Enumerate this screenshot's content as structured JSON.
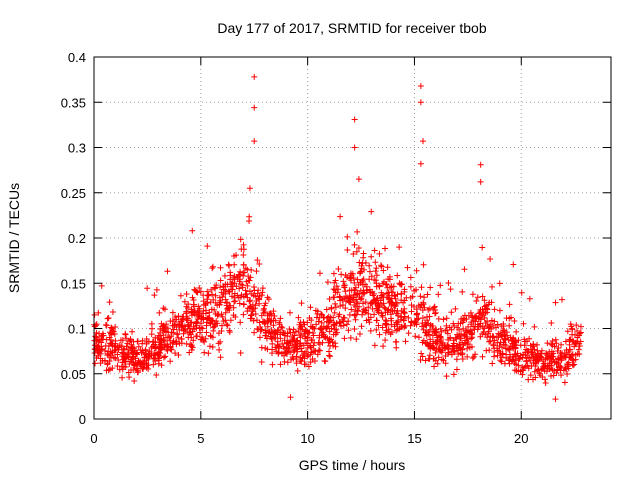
{
  "chart_data": {
    "type": "scatter",
    "title": "Day 177 of 2017, SRMTID for receiver tbob",
    "xlabel": "GPS time / hours",
    "ylabel": "SRMTID / TECUs",
    "xlim": [
      0,
      24.2
    ],
    "ylim": [
      0,
      0.4
    ],
    "x_ticks": [
      "0",
      "5",
      "10",
      "15",
      "20"
    ],
    "y_ticks": [
      "0",
      "0.05",
      "0.1",
      "0.15",
      "0.2",
      "0.25",
      "0.3",
      "0.35",
      "0.4"
    ],
    "x_tick_values": [
      0,
      5,
      10,
      15,
      20
    ],
    "y_tick_values": [
      0,
      0.05,
      0.1,
      0.15,
      0.2,
      0.25,
      0.3,
      0.35,
      0.4
    ],
    "grid": true,
    "marker": "+",
    "color": "#ff0000",
    "x_extent_hours": [
      0,
      22.8
    ],
    "density_note": "approx. 2000 points; values shown as a baseline trend plus representative outliers",
    "baseline": [
      {
        "x": 0.0,
        "y": 0.09
      },
      {
        "x": 1.0,
        "y": 0.075
      },
      {
        "x": 2.0,
        "y": 0.065
      },
      {
        "x": 3.0,
        "y": 0.08
      },
      {
        "x": 4.0,
        "y": 0.1
      },
      {
        "x": 5.0,
        "y": 0.11
      },
      {
        "x": 6.0,
        "y": 0.12
      },
      {
        "x": 7.0,
        "y": 0.15
      },
      {
        "x": 8.0,
        "y": 0.11
      },
      {
        "x": 9.0,
        "y": 0.08
      },
      {
        "x": 10.0,
        "y": 0.085
      },
      {
        "x": 11.0,
        "y": 0.1
      },
      {
        "x": 12.0,
        "y": 0.14
      },
      {
        "x": 13.0,
        "y": 0.13
      },
      {
        "x": 14.0,
        "y": 0.12
      },
      {
        "x": 15.0,
        "y": 0.12
      },
      {
        "x": 16.0,
        "y": 0.09
      },
      {
        "x": 17.0,
        "y": 0.08
      },
      {
        "x": 18.0,
        "y": 0.11
      },
      {
        "x": 19.0,
        "y": 0.09
      },
      {
        "x": 20.0,
        "y": 0.07
      },
      {
        "x": 21.0,
        "y": 0.065
      },
      {
        "x": 22.0,
        "y": 0.065
      },
      {
        "x": 22.8,
        "y": 0.09
      }
    ],
    "highlights": [
      {
        "x": 7.5,
        "y": 0.378
      },
      {
        "x": 7.5,
        "y": 0.344
      },
      {
        "x": 7.5,
        "y": 0.307
      },
      {
        "x": 7.3,
        "y": 0.255
      },
      {
        "x": 12.2,
        "y": 0.331
      },
      {
        "x": 12.2,
        "y": 0.3
      },
      {
        "x": 12.4,
        "y": 0.265
      },
      {
        "x": 15.3,
        "y": 0.368
      },
      {
        "x": 15.3,
        "y": 0.35
      },
      {
        "x": 15.4,
        "y": 0.307
      },
      {
        "x": 15.3,
        "y": 0.282
      },
      {
        "x": 18.1,
        "y": 0.281
      },
      {
        "x": 18.1,
        "y": 0.262
      },
      {
        "x": 4.6,
        "y": 0.208
      },
      {
        "x": 9.2,
        "y": 0.024
      },
      {
        "x": 21.6,
        "y": 0.022
      }
    ]
  }
}
